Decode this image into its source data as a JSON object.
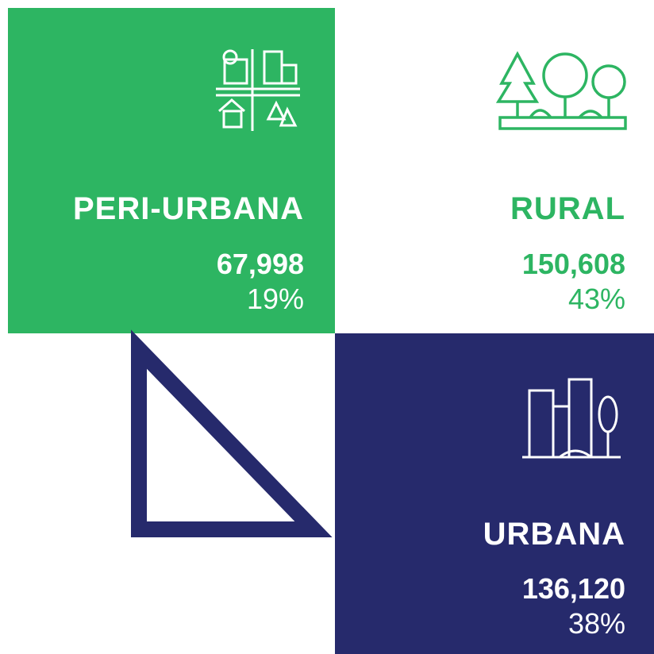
{
  "panels": [
    {
      "label": "PERI-URBANA",
      "count": "67,998",
      "share": "19%"
    },
    {
      "label": "RURAL",
      "count": "150,608",
      "share": "43%"
    },
    {
      "label": "URBANA",
      "count": "136,120",
      "share": "38%"
    }
  ]
}
